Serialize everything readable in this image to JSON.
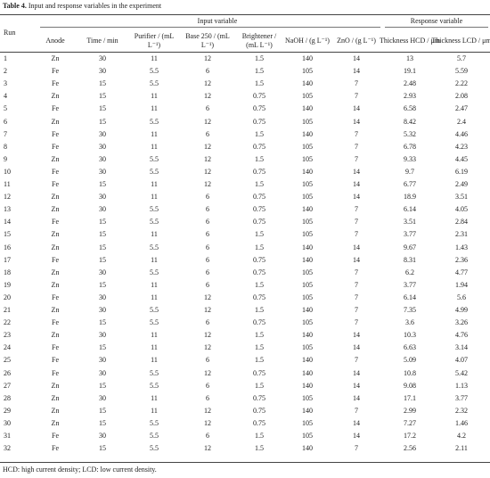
{
  "caption": {
    "label": "Table 4.",
    "text": "Input and response variables in the experiment"
  },
  "table": {
    "groups": [
      "Input variable",
      "Response variable"
    ],
    "columns": [
      "Run",
      "Anode",
      "Time / min",
      "Purifier / (mL L⁻¹)",
      "Base 250 / (mL L⁻¹)",
      "Brightener / (mL L⁻¹)",
      "NaOH / (g L⁻¹)",
      "ZnO / (g L⁻¹)",
      "Thickness HCD / μm",
      "Thickness LCD / μm"
    ],
    "rows": [
      [
        1,
        "Zn",
        30,
        11,
        12,
        1.5,
        140,
        14,
        13,
        5.7
      ],
      [
        2,
        "Fe",
        30,
        5.5,
        6,
        1.5,
        105,
        14,
        19.1,
        5.59
      ],
      [
        3,
        "Fe",
        15,
        5.5,
        12,
        1.5,
        140,
        7,
        2.48,
        2.22
      ],
      [
        4,
        "Zn",
        15,
        11,
        12,
        0.75,
        105,
        7,
        2.93,
        2.08
      ],
      [
        5,
        "Fe",
        15,
        11,
        6,
        0.75,
        140,
        14,
        6.58,
        2.47
      ],
      [
        6,
        "Zn",
        15,
        5.5,
        12,
        0.75,
        105,
        14,
        8.42,
        2.4
      ],
      [
        7,
        "Fe",
        30,
        11,
        6,
        1.5,
        140,
        7,
        5.32,
        4.46
      ],
      [
        8,
        "Fe",
        30,
        11,
        12,
        0.75,
        105,
        7,
        6.78,
        4.23
      ],
      [
        9,
        "Zn",
        30,
        5.5,
        12,
        1.5,
        105,
        7,
        9.33,
        4.45
      ],
      [
        10,
        "Fe",
        30,
        5.5,
        12,
        0.75,
        140,
        14,
        9.7,
        6.19
      ],
      [
        11,
        "Fe",
        15,
        11,
        12,
        1.5,
        105,
        14,
        6.77,
        2.49
      ],
      [
        12,
        "Zn",
        30,
        11,
        6,
        0.75,
        105,
        14,
        18.9,
        3.51
      ],
      [
        13,
        "Zn",
        30,
        5.5,
        6,
        0.75,
        140,
        7,
        6.14,
        4.05
      ],
      [
        14,
        "Fe",
        15,
        5.5,
        6,
        0.75,
        105,
        7,
        3.51,
        2.84
      ],
      [
        15,
        "Zn",
        15,
        11,
        6,
        1.5,
        105,
        7,
        3.77,
        2.31
      ],
      [
        16,
        "Zn",
        15,
        5.5,
        6,
        1.5,
        140,
        14,
        9.67,
        1.43
      ],
      [
        17,
        "Fe",
        15,
        11,
        6,
        0.75,
        140,
        14,
        8.31,
        2.36
      ],
      [
        18,
        "Zn",
        30,
        5.5,
        6,
        0.75,
        105,
        7,
        6.2,
        4.77
      ],
      [
        19,
        "Zn",
        15,
        11,
        6,
        1.5,
        105,
        7,
        3.77,
        1.94
      ],
      [
        20,
        "Fe",
        30,
        11,
        12,
        0.75,
        105,
        7,
        6.14,
        5.6
      ],
      [
        21,
        "Zn",
        30,
        5.5,
        12,
        1.5,
        140,
        7,
        7.35,
        4.99
      ],
      [
        22,
        "Fe",
        15,
        5.5,
        6,
        0.75,
        105,
        7,
        3.6,
        3.26
      ],
      [
        23,
        "Zn",
        30,
        11,
        12,
        1.5,
        140,
        14,
        10.3,
        4.76
      ],
      [
        24,
        "Fe",
        15,
        11,
        12,
        1.5,
        105,
        14,
        6.63,
        3.14
      ],
      [
        25,
        "Fe",
        30,
        11,
        6,
        1.5,
        140,
        7,
        5.09,
        4.07
      ],
      [
        26,
        "Fe",
        30,
        5.5,
        12,
        0.75,
        140,
        14,
        10.8,
        5.42
      ],
      [
        27,
        "Zn",
        15,
        5.5,
        6,
        1.5,
        140,
        14,
        9.08,
        1.13
      ],
      [
        28,
        "Zn",
        30,
        11,
        6,
        0.75,
        105,
        14,
        17.1,
        3.77
      ],
      [
        29,
        "Zn",
        15,
        11,
        12,
        0.75,
        140,
        7,
        2.99,
        2.32
      ],
      [
        30,
        "Zn",
        15,
        5.5,
        12,
        0.75,
        105,
        14,
        7.27,
        1.46
      ],
      [
        31,
        "Fe",
        30,
        5.5,
        6,
        1.5,
        105,
        14,
        17.2,
        4.2
      ],
      [
        32,
        "Fe",
        15,
        5.5,
        12,
        1.5,
        140,
        7,
        2.56,
        2.11
      ]
    ]
  },
  "footnote": "HCD: high current density; LCD: low current density."
}
